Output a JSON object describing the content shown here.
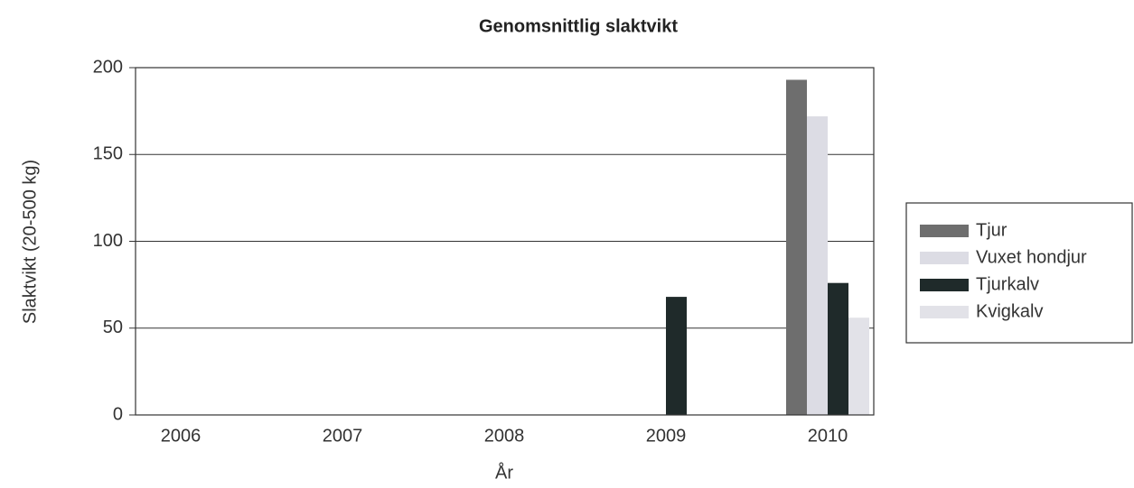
{
  "chart_data": {
    "type": "bar",
    "title": "Genomsnittlig slaktvikt",
    "x_label": "År",
    "y_label": "Slaktvikt (20-500 kg)",
    "categories": [
      "2006",
      "2007",
      "2008",
      "2009",
      "2010"
    ],
    "series": [
      {
        "name": "Tjur",
        "color": "#6e6e6e",
        "values": [
          null,
          null,
          null,
          null,
          193
        ]
      },
      {
        "name": "Vuxet hondjur",
        "color": "#dcdce4",
        "values": [
          null,
          null,
          null,
          null,
          172
        ]
      },
      {
        "name": "Tjurkalv",
        "color": "#1f2a2a",
        "values": [
          null,
          null,
          null,
          68,
          76
        ]
      },
      {
        "name": "Kvigkalv",
        "color": "#e2e2e8",
        "values": [
          null,
          null,
          null,
          null,
          56
        ]
      }
    ],
    "ylim": [
      0,
      200
    ],
    "yticks": [
      0,
      50,
      100,
      150,
      200
    ],
    "grid": true,
    "legend": "right"
  }
}
